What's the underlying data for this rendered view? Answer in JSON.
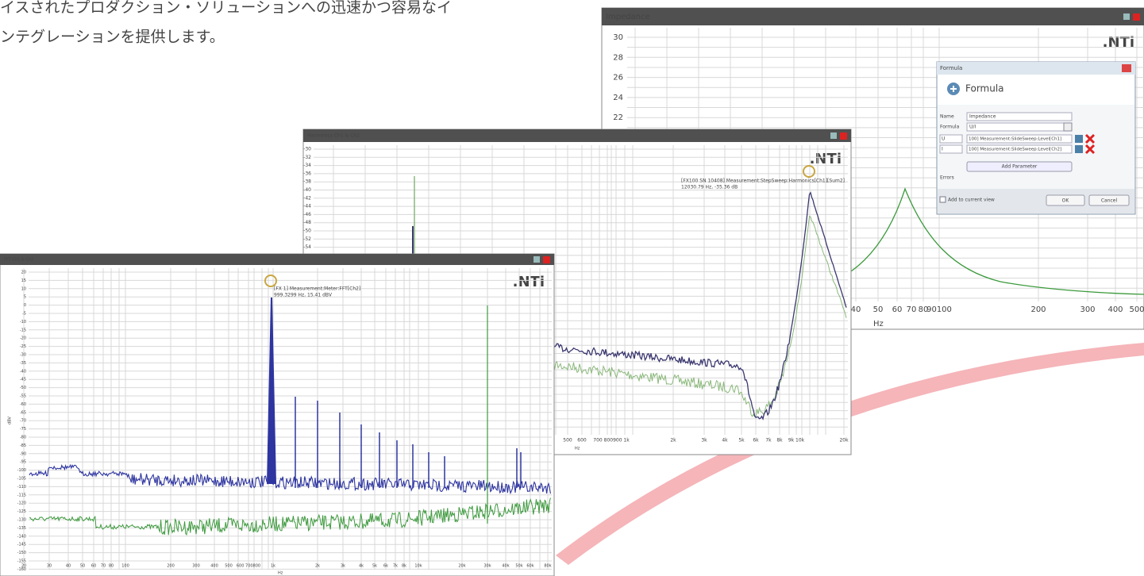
{
  "intro": {
    "lines": [
      "イスされたプロダクション・ソリューションへの迅速かつ容易なイ",
      "ンテグレーションを提供します。"
    ]
  },
  "impedance_window": {
    "title": "Impedance",
    "logo": ".NTi",
    "yticks": [
      30,
      28,
      26,
      24,
      22
    ],
    "xticks": [
      "40",
      "50",
      "60",
      "70",
      "80",
      "90100",
      "200",
      "300",
      "400",
      "500"
    ],
    "x_label": "Hz"
  },
  "formula_dialog": {
    "title": "Formula",
    "heading": "Formula",
    "name_label": "Name",
    "name_value": "Impedance",
    "formula_label": "Formula",
    "formula_value": "U/I",
    "parameters": [
      {
        "name": "U",
        "source": "100] Measurement:SlideSweep:Level[Ch1]"
      },
      {
        "name": "I",
        "source": "100] Measurement:SlideSweep:Level[Ch2]"
      }
    ],
    "add_button": "Add Parameter",
    "errors_label": "Errors",
    "checkbox_label": "Add to current view",
    "ok": "OK",
    "cancel": "Cancel"
  },
  "harmonics_window": {
    "title": "Harmonics Ch1 & Ch2",
    "logo": ".NTi",
    "yticks": [
      -30,
      -32,
      -34,
      -36,
      -38,
      -40,
      -42,
      -44,
      -46,
      -48,
      -50,
      -52,
      -54
    ],
    "xticks": [
      "500",
      "600",
      "700 800900 1k",
      "2k",
      "3k",
      "4k",
      "5k",
      "6k",
      "7k",
      "8k",
      "9k 10k",
      "20k"
    ],
    "x_label": "Hz",
    "annotation": [
      "[FX100 SN 10408] Measurement:StepSweep:Harmonics[Ch1][Sum2]",
      "12030.79 Hz, -35.36 dB"
    ]
  },
  "fft_window": {
    "title": "FFT Ch1 & Ch2",
    "logo": ".NTi",
    "yticks": [
      20,
      15,
      10,
      5,
      0,
      -5,
      -10,
      -15,
      -20,
      -25,
      -30,
      -35,
      -40,
      -45,
      -50,
      -55,
      -60,
      -65,
      -70,
      -75,
      -80,
      -85,
      -90,
      -95,
      -100,
      -105,
      -110,
      -115,
      -120,
      -125,
      -130,
      -135,
      -140,
      -145,
      -150,
      -155,
      -160
    ],
    "xticks": [
      "20",
      "30",
      "40",
      "50",
      "60",
      "70",
      "80",
      "100",
      "200",
      "300",
      "400",
      "500",
      "600 700800",
      "1k",
      "2k",
      "3k",
      "4k",
      "5k",
      "6k",
      "7k",
      "8k",
      "10k",
      "20k",
      "30k",
      "40k",
      "50k",
      "60k",
      "80k"
    ],
    "x_label": "Hz",
    "y_label": "dBV",
    "annotation": [
      "[FX 1] Measurement:Meter:FFT[Ch2]",
      "999.3299 Hz, 15.41 dBV"
    ]
  }
}
